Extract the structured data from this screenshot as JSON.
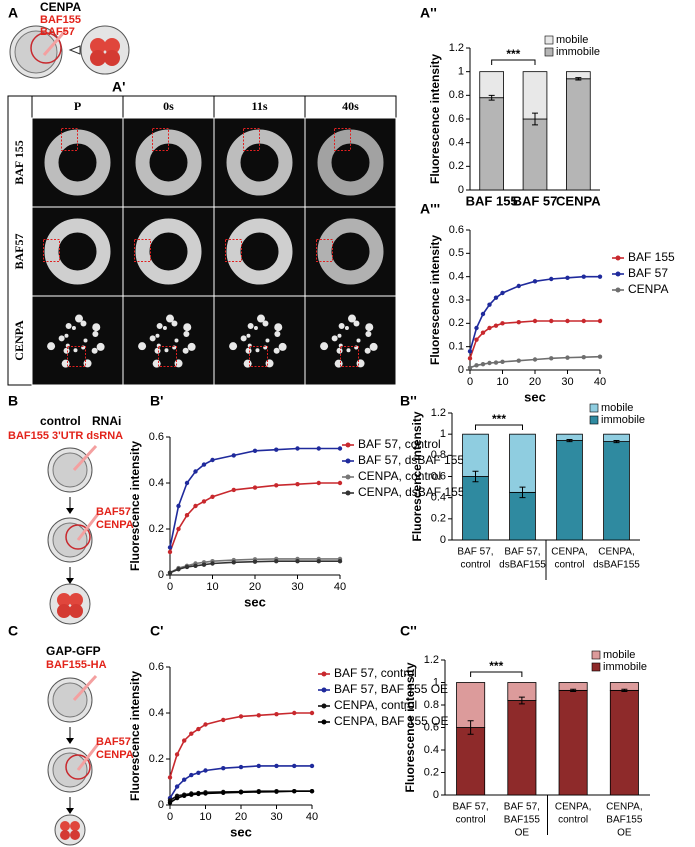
{
  "panel_labels": [
    "A",
    "A'",
    "A''",
    "A'''",
    "B",
    "B'",
    "B''",
    "C",
    "C'",
    "C''"
  ],
  "diagram_a": {
    "lines": [
      "CENPA",
      "BAF155",
      "BAF57"
    ]
  },
  "diagram_b": {
    "top": [
      "control",
      "RNAi"
    ],
    "injected": "BAF155 3'UTR dsRNA",
    "second": [
      "BAF57",
      "CENPA"
    ]
  },
  "diagram_c": {
    "top": [
      "GAP-GFP",
      "BAF155-HA"
    ],
    "second": [
      "BAF57",
      "CENPA"
    ]
  },
  "micrograph": {
    "columns": [
      "P",
      "0s",
      "11s",
      "40s"
    ],
    "rows": [
      "BAF 155",
      "BAF57",
      "CENPA"
    ]
  },
  "chart_data": [
    {
      "type": "stacked_bar",
      "ylabel": "Fluorescence intensity",
      "annotation": "***",
      "categories": [
        [
          "BAF 155"
        ],
        [
          "BAF 57"
        ],
        [
          "CENPA"
        ]
      ],
      "series": [
        {
          "name": "immobile",
          "color": "#b5b5b5",
          "values": [
            0.78,
            0.6,
            0.94
          ],
          "errors": [
            0.02,
            0.05,
            0.01
          ]
        },
        {
          "name": "mobile",
          "color": "#e8e8e8",
          "values": [
            0.22,
            0.4,
            0.06
          ]
        }
      ],
      "ylim": [
        0,
        1.2
      ],
      "yticks": [
        0,
        0.2,
        0.4,
        0.6,
        0.8,
        1,
        1.2
      ],
      "legend": "top-right"
    },
    {
      "type": "line",
      "ylabel": "Fluorescence intensity",
      "xlabel": "sec",
      "x": [
        0,
        2,
        4,
        6,
        8,
        10,
        15,
        20,
        25,
        30,
        35,
        40
      ],
      "series": [
        {
          "name": "BAF 155",
          "color": "#c8282d",
          "values": [
            0.05,
            0.13,
            0.16,
            0.18,
            0.19,
            0.2,
            0.205,
            0.21,
            0.21,
            0.21,
            0.21,
            0.21
          ]
        },
        {
          "name": "BAF 57",
          "color": "#1f2a9c",
          "values": [
            0.08,
            0.18,
            0.24,
            0.28,
            0.31,
            0.33,
            0.36,
            0.38,
            0.39,
            0.395,
            0.4,
            0.4
          ]
        },
        {
          "name": "CENPA",
          "color": "#6e6e6e",
          "values": [
            0.01,
            0.02,
            0.025,
            0.03,
            0.032,
            0.035,
            0.04,
            0.045,
            0.05,
            0.053,
            0.055,
            0.057
          ]
        }
      ],
      "xlim": [
        0,
        40
      ],
      "xticks": [
        0,
        10,
        20,
        30,
        40
      ],
      "ylim": [
        0,
        0.6
      ],
      "yticks": [
        0,
        0.1,
        0.2,
        0.3,
        0.4,
        0.5,
        0.6
      ],
      "legend": "right"
    },
    {
      "type": "line",
      "ylabel": "Fluorescence intensity",
      "xlabel": "sec",
      "x": [
        0,
        2,
        4,
        6,
        8,
        10,
        15,
        20,
        25,
        30,
        35,
        40
      ],
      "series": [
        {
          "name": "BAF 57, control",
          "color": "#c8282d",
          "values": [
            0.1,
            0.2,
            0.26,
            0.3,
            0.32,
            0.34,
            0.37,
            0.38,
            0.39,
            0.395,
            0.4,
            0.4
          ]
        },
        {
          "name": "BAF 57, dsBAF 155",
          "color": "#1f2a9c",
          "values": [
            0.12,
            0.3,
            0.4,
            0.45,
            0.48,
            0.5,
            0.52,
            0.54,
            0.545,
            0.55,
            0.55,
            0.55
          ]
        },
        {
          "name": "CENPA, control",
          "color": "#777777",
          "values": [
            0.01,
            0.03,
            0.04,
            0.05,
            0.055,
            0.06,
            0.065,
            0.068,
            0.07,
            0.07,
            0.07,
            0.07
          ]
        },
        {
          "name": "CENPA, dsBAF 155",
          "color": "#333333",
          "values": [
            0.01,
            0.025,
            0.035,
            0.04,
            0.045,
            0.05,
            0.055,
            0.058,
            0.06,
            0.06,
            0.06,
            0.06
          ]
        }
      ],
      "xlim": [
        0,
        40
      ],
      "xticks": [
        0,
        10,
        20,
        30,
        40
      ],
      "ylim": [
        0,
        0.6
      ],
      "yticks": [
        0,
        0.2,
        0.4,
        0.6
      ],
      "legend": "right"
    },
    {
      "type": "stacked_bar",
      "ylabel": "Fluorescence intensity",
      "annotation": "***",
      "categories": [
        [
          "BAF 57,",
          "control"
        ],
        [
          "BAF 57,",
          "dsBAF155"
        ],
        [
          "CENPA,",
          "control"
        ],
        [
          "CENPA,",
          "dsBAF155"
        ]
      ],
      "series": [
        {
          "name": "immobile",
          "color": "#2f8aa0",
          "values": [
            0.6,
            0.45,
            0.94,
            0.93
          ],
          "errors": [
            0.05,
            0.05,
            0.01,
            0.01
          ]
        },
        {
          "name": "mobile",
          "color": "#8fcde0",
          "values": [
            0.4,
            0.55,
            0.06,
            0.07
          ]
        }
      ],
      "ylim": [
        0,
        1.2
      ],
      "yticks": [
        0,
        0.2,
        0.4,
        0.6,
        0.8,
        1,
        1.2
      ],
      "legend": "top-right"
    },
    {
      "type": "line",
      "ylabel": "Fluorescence intensity",
      "xlabel": "sec",
      "x": [
        0,
        2,
        4,
        6,
        8,
        10,
        15,
        20,
        25,
        30,
        35,
        40
      ],
      "series": [
        {
          "name": "BAF 57, control",
          "color": "#c8282d",
          "values": [
            0.12,
            0.22,
            0.28,
            0.31,
            0.33,
            0.35,
            0.37,
            0.385,
            0.39,
            0.395,
            0.4,
            0.4
          ]
        },
        {
          "name": "BAF 57, BAF 155 OE",
          "color": "#1f2a9c",
          "values": [
            0.03,
            0.08,
            0.11,
            0.13,
            0.14,
            0.15,
            0.16,
            0.165,
            0.17,
            0.17,
            0.17,
            0.17
          ]
        },
        {
          "name": "CENPA, control",
          "color": "#111111",
          "values": [
            0.02,
            0.04,
            0.045,
            0.05,
            0.052,
            0.055,
            0.057,
            0.058,
            0.06,
            0.06,
            0.06,
            0.06
          ]
        },
        {
          "name": "CENPA, BAF 155 OE",
          "color": "#000000",
          "values": [
            0.01,
            0.03,
            0.04,
            0.045,
            0.048,
            0.05,
            0.053,
            0.055,
            0.057,
            0.058,
            0.06,
            0.06
          ]
        }
      ],
      "xlim": [
        0,
        40
      ],
      "xticks": [
        0,
        10,
        20,
        30,
        40
      ],
      "ylim": [
        0,
        0.6
      ],
      "yticks": [
        0,
        0.2,
        0.4,
        0.6
      ],
      "legend": "right"
    },
    {
      "type": "stacked_bar",
      "ylabel": "Fluorescence intensity",
      "annotation": "***",
      "categories": [
        [
          "BAF 57,",
          "control"
        ],
        [
          "BAF 57,",
          "BAF155",
          "OE"
        ],
        [
          "CENPA,",
          "control"
        ],
        [
          "CENPA,",
          "BAF155",
          "OE"
        ]
      ],
      "series": [
        {
          "name": "immobile",
          "color": "#8e2a2a",
          "values": [
            0.6,
            0.84,
            0.93,
            0.93
          ],
          "errors": [
            0.06,
            0.03,
            0.01,
            0.01
          ]
        },
        {
          "name": "mobile",
          "color": "#dc9b9b",
          "values": [
            0.4,
            0.16,
            0.07,
            0.07
          ]
        }
      ],
      "ylim": [
        0,
        1.2
      ],
      "yticks": [
        0,
        0.2,
        0.4,
        0.6,
        0.8,
        1,
        1.2
      ],
      "legend": "top-right"
    }
  ]
}
